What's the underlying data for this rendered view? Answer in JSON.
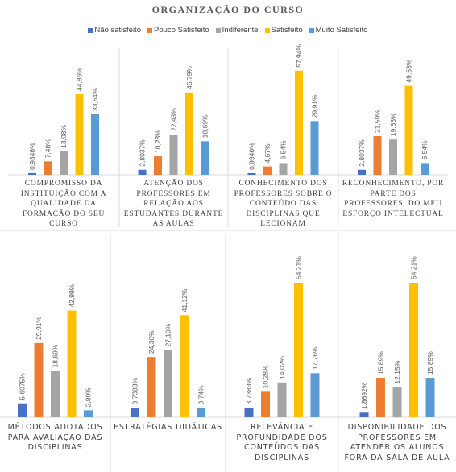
{
  "chart_data": {
    "type": "bar",
    "title": "ORGANIZAÇÃO DO CURSO",
    "categories": [
      "COMPROMISSO DA INSTITUIÇÃO COM A QUALIDADE DA FORMAÇÃO DO SEU CURSO",
      "ATENÇÃO DOS PROFESSORES EM RELAÇÃO AOS ESTUDANTES DURANTE AS AULAS",
      "CONHECIMENTO DOS PROFESSORES SOBRE O CONTEÚDO DAS DISCIPLINAS QUE LECIONAM",
      "RECONHECIMENTO, POR PARTE DOS PROFESSORES, DO MEU ESFORÇO INTELECTUAL",
      "MÉTODOS ADOTADOS PARA AVALIAÇÃO DAS DISCIPLINAS",
      "ESTRATÉGIAS DIDÁTICAS",
      "RELEVÂNCIA E PROFUNDIDADE DOS CONTEÚDOS DAS DISCIPLINAS",
      "DISPONIBILIDADE DOS PROFESSORES EM ATENDER OS ALUNOS FORA DA SALA DE AULA"
    ],
    "series": [
      {
        "name": "Não satisfeito",
        "color": "#4472c4",
        "values": [
          0.9346,
          2.8037,
          0.9346,
          2.8037,
          5.6075,
          3.7383,
          3.7383,
          1.8692
        ],
        "value_labels": [
          "0,9346%",
          "2,8037%",
          "0,9346%",
          "2,8037%",
          "5,6075%",
          "3,7383%",
          "3,7383%",
          "1,8692%"
        ]
      },
      {
        "name": "Pouco Satisfeito",
        "color": "#ed7d31",
        "values": [
          7.48,
          10.28,
          4.67,
          21.5,
          29.91,
          24.3,
          10.28,
          15.89
        ],
        "value_labels": [
          "7,48%",
          "10,28%",
          "4,67%",
          "21,50%",
          "29,91%",
          "24,30%",
          "10,28%",
          "15,89%"
        ]
      },
      {
        "name": "Indiferente",
        "color": "#a5a5a5",
        "values": [
          13.08,
          22.43,
          6.54,
          19.63,
          18.69,
          27.1,
          14.02,
          12.15
        ],
        "value_labels": [
          "13,08%",
          "22,43%",
          "6,54%",
          "19,63%",
          "18,69%",
          "27,10%",
          "14,02%",
          "12,15%"
        ]
      },
      {
        "name": "Satisfeito",
        "color": "#ffc000",
        "values": [
          44.86,
          45.79,
          57.94,
          49.53,
          42.99,
          41.12,
          54.21,
          54.21
        ],
        "value_labels": [
          "44,86%",
          "45,79%",
          "57,94%",
          "49,53%",
          "42,99%",
          "41,12%",
          "54,21%",
          "54,21%"
        ]
      },
      {
        "name": "Muito Satisfeito",
        "color": "#5b9bd5",
        "values": [
          33.64,
          18.69,
          29.91,
          6.54,
          2.8,
          3.74,
          17.76,
          15.89
        ],
        "value_labels": [
          "33,64%",
          "18,69%",
          "29,91%",
          "6,54%",
          "2,80%",
          "3,74%",
          "17,76%",
          "15,89%"
        ]
      }
    ]
  }
}
